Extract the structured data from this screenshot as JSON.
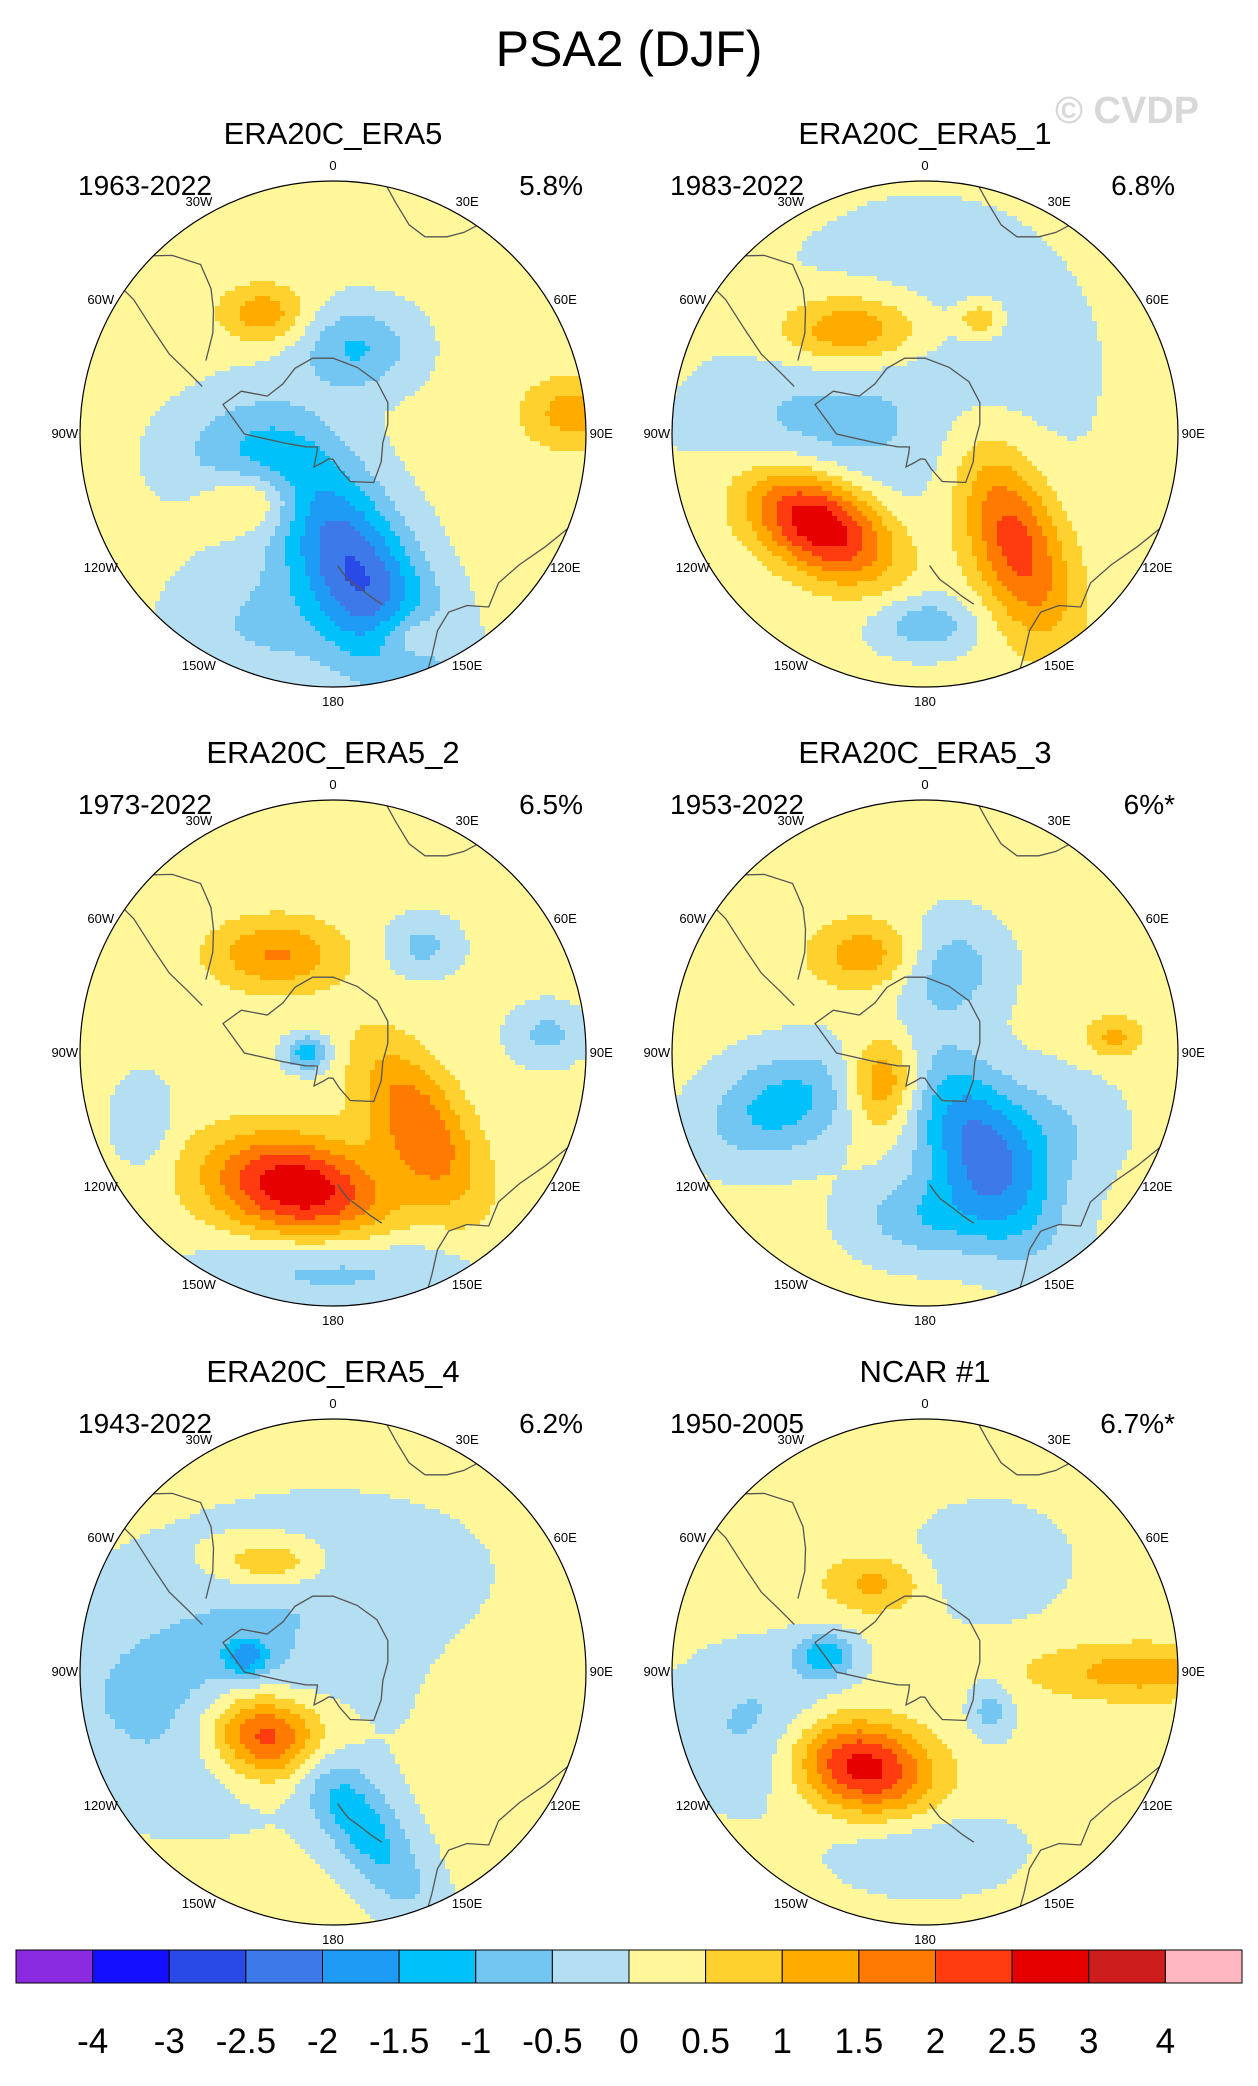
{
  "title": "PSA2 (DJF)",
  "watermark": "© CVDP",
  "chart_data": {
    "type": "heatmap",
    "variable_label": "PSA2 (DJF)",
    "projection": "south polar stereographic",
    "longitude_labels": [
      "0",
      "30E",
      "60E",
      "90E",
      "120E",
      "150E",
      "180",
      "150W",
      "120W",
      "90W",
      "60W",
      "30W"
    ],
    "colorbar": {
      "ticks": [
        "-4",
        "-3",
        "-2.5",
        "-2",
        "-1.5",
        "-1",
        "-0.5",
        "0",
        "0.5",
        "1",
        "1.5",
        "2",
        "2.5",
        "3",
        "4"
      ],
      "levels": [
        -4,
        -3,
        -2.5,
        -2,
        -1.5,
        -1,
        -0.5,
        0,
        0.5,
        1,
        1.5,
        2,
        2.5,
        3,
        4
      ],
      "colors": [
        "#8a2be2",
        "#1410ff",
        "#2a4ae8",
        "#3d79e8",
        "#1e9cf5",
        "#00c1fa",
        "#73c6f2",
        "#b4def2",
        "#fff79a",
        "#ffd12e",
        "#ffab00",
        "#ff7a00",
        "#ff3c0f",
        "#e60000",
        "#cd1d1d",
        "#ffb6c1"
      ]
    },
    "panels": [
      {
        "name": "ERA20C_ERA5",
        "period": "1963-2022",
        "variance": "5.8%",
        "blobs": [
          {
            "lon": 170,
            "r": 0.55,
            "v": -2.6,
            "sa": 0.35,
            "sb": 0.16,
            "rot": 60
          },
          {
            "lon": 230,
            "r": 0.4,
            "v": 1.2,
            "sa": 0.14,
            "sb": 0.09,
            "rot": 0
          },
          {
            "lon": 330,
            "r": 0.55,
            "v": 1.2,
            "sa": 0.12,
            "sb": 0.08,
            "rot": 0
          },
          {
            "lon": 15,
            "r": 0.35,
            "v": -1.2,
            "sa": 0.16,
            "sb": 0.12,
            "rot": 0
          },
          {
            "lon": 255,
            "r": 0.35,
            "v": -1.0,
            "sa": 0.22,
            "sb": 0.16,
            "rot": 0
          },
          {
            "lon": 85,
            "r": 0.95,
            "v": 1.1,
            "sa": 0.14,
            "sb": 0.1,
            "rot": 0
          },
          {
            "lon": 160,
            "r": 0.85,
            "v": 1.1,
            "sa": 0.1,
            "sb": 0.08,
            "rot": 0
          },
          {
            "lon": 200,
            "r": 0.8,
            "v": -0.7,
            "sa": 0.25,
            "sb": 0.18,
            "rot": 0
          }
        ]
      },
      {
        "name": "ERA20C_ERA5_1",
        "period": "1983-2022",
        "variance": "6.8%",
        "blobs": [
          {
            "lon": 230,
            "r": 0.55,
            "v": 3.0,
            "sa": 0.22,
            "sb": 0.13,
            "rot": 30
          },
          {
            "lon": 140,
            "r": 0.55,
            "v": 2.2,
            "sa": 0.28,
            "sb": 0.13,
            "rot": 70
          },
          {
            "lon": 0,
            "r": 0.25,
            "v": -0.5,
            "sa": 0.45,
            "sb": 0.45,
            "rot": 0
          },
          {
            "lon": 325,
            "r": 0.5,
            "v": 1.6,
            "sa": 0.2,
            "sb": 0.1,
            "rot": 0
          },
          {
            "lon": 180,
            "r": 0.75,
            "v": -1.0,
            "sa": 0.14,
            "sb": 0.08,
            "rot": 0
          },
          {
            "lon": 25,
            "r": 0.5,
            "v": 1.0,
            "sa": 0.06,
            "sb": 0.05,
            "rot": 0
          },
          {
            "lon": 270,
            "r": 0.5,
            "v": -0.6,
            "sa": 0.3,
            "sb": 0.18,
            "rot": 0
          }
        ]
      },
      {
        "name": "ERA20C_ERA5_2",
        "period": "1973-2022",
        "variance": "6.5%",
        "blobs": [
          {
            "lon": 195,
            "r": 0.55,
            "v": 2.8,
            "sa": 0.25,
            "sb": 0.14,
            "rot": 10
          },
          {
            "lon": 130,
            "r": 0.45,
            "v": 1.8,
            "sa": 0.25,
            "sb": 0.12,
            "rot": 60
          },
          {
            "lon": 330,
            "r": 0.45,
            "v": 1.4,
            "sa": 0.18,
            "sb": 0.1,
            "rot": 0
          },
          {
            "lon": 270,
            "r": 0.1,
            "v": -1.5,
            "sa": 0.06,
            "sb": 0.05,
            "rot": 0
          },
          {
            "lon": 180,
            "r": 0.85,
            "v": -0.9,
            "sa": 0.35,
            "sb": 0.1,
            "rot": 0
          },
          {
            "lon": 40,
            "r": 0.55,
            "v": -0.8,
            "sa": 0.1,
            "sb": 0.08,
            "rot": 0
          },
          {
            "lon": 85,
            "r": 0.85,
            "v": -0.8,
            "sa": 0.1,
            "sb": 0.08,
            "rot": 0
          },
          {
            "lon": 250,
            "r": 0.8,
            "v": -0.7,
            "sa": 0.08,
            "sb": 0.12,
            "rot": 0
          }
        ]
      },
      {
        "name": "ERA20C_ERA5_3",
        "period": "1953-2022",
        "variance": "6%*",
        "blobs": [
          {
            "lon": 150,
            "r": 0.45,
            "v": -2.3,
            "sa": 0.28,
            "sb": 0.15,
            "rot": 60
          },
          {
            "lon": 235,
            "r": 0.2,
            "v": 1.6,
            "sa": 0.1,
            "sb": 0.13,
            "rot": 0
          },
          {
            "lon": 250,
            "r": 0.6,
            "v": -1.4,
            "sa": 0.22,
            "sb": 0.14,
            "rot": -20
          },
          {
            "lon": 330,
            "r": 0.45,
            "v": 1.2,
            "sa": 0.16,
            "sb": 0.1,
            "rot": 0
          },
          {
            "lon": 15,
            "r": 0.35,
            "v": -1.0,
            "sa": 0.15,
            "sb": 0.14,
            "rot": 0
          },
          {
            "lon": 85,
            "r": 0.75,
            "v": 1.0,
            "sa": 0.08,
            "sb": 0.06,
            "rot": 0
          },
          {
            "lon": 180,
            "r": 0.65,
            "v": -1.0,
            "sa": 0.2,
            "sb": 0.12,
            "rot": 0
          },
          {
            "lon": 120,
            "r": 0.6,
            "v": -0.6,
            "sa": 0.18,
            "sb": 0.16,
            "rot": 0
          }
        ]
      },
      {
        "name": "ERA20C_ERA5_4",
        "period": "1943-2022",
        "variance": "6.2%",
        "blobs": [
          {
            "lon": 225,
            "r": 0.35,
            "v": 2.8,
            "sa": 0.17,
            "sb": 0.12,
            "rot": 10
          },
          {
            "lon": 170,
            "r": 0.6,
            "v": -1.4,
            "sa": 0.3,
            "sb": 0.1,
            "rot": 55
          },
          {
            "lon": 260,
            "r": 0.55,
            "v": -0.9,
            "sa": 0.45,
            "sb": 0.3,
            "rot": 0
          },
          {
            "lon": 330,
            "r": 0.5,
            "v": 1.2,
            "sa": 0.16,
            "sb": 0.07,
            "rot": 0
          },
          {
            "lon": 280,
            "r": 0.35,
            "v": -1.4,
            "sa": 0.06,
            "sb": 0.05,
            "rot": 0
          },
          {
            "lon": 0,
            "r": 0.4,
            "v": -0.5,
            "sa": 0.4,
            "sb": 0.2,
            "rot": 0
          }
        ]
      },
      {
        "name": "NCAR #1",
        "period": "1950-2005",
        "variance": "6.7%*",
        "blobs": [
          {
            "lon": 215,
            "r": 0.45,
            "v": 2.8,
            "sa": 0.2,
            "sb": 0.13,
            "rot": 15
          },
          {
            "lon": 280,
            "r": 0.4,
            "v": -1.4,
            "sa": 0.08,
            "sb": 0.06,
            "rot": 0
          },
          {
            "lon": 250,
            "r": 0.65,
            "v": -0.9,
            "sa": 0.25,
            "sb": 0.2,
            "rot": 0
          },
          {
            "lon": 90,
            "r": 0.85,
            "v": 1.1,
            "sa": 0.3,
            "sb": 0.08,
            "rot": 0
          },
          {
            "lon": 330,
            "r": 0.4,
            "v": 1.0,
            "sa": 0.14,
            "sb": 0.08,
            "rot": 0
          },
          {
            "lon": 120,
            "r": 0.3,
            "v": -0.9,
            "sa": 0.06,
            "sb": 0.08,
            "rot": 0
          },
          {
            "lon": 30,
            "r": 0.5,
            "v": -0.6,
            "sa": 0.2,
            "sb": 0.15,
            "rot": 0
          },
          {
            "lon": 180,
            "r": 0.7,
            "v": -0.6,
            "sa": 0.25,
            "sb": 0.12,
            "rot": 0
          }
        ]
      }
    ]
  }
}
